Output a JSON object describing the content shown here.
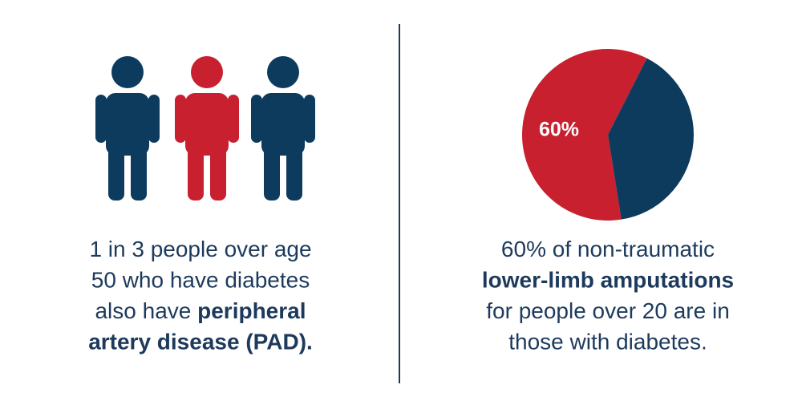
{
  "left_panel": {
    "caption": [
      [
        {
          "text": "1 in 3 people over age",
          "bold": false
        }
      ],
      [
        {
          "text": "50 who have diabetes",
          "bold": false
        }
      ],
      [
        {
          "text": "also have ",
          "bold": false
        },
        {
          "text": "peripheral",
          "bold": true
        }
      ],
      [
        {
          "text": "artery disease (PAD).",
          "bold": true
        }
      ]
    ]
  },
  "chart_data": {
    "type": "pie",
    "values": [
      60,
      40
    ],
    "value_labels": [
      "60%",
      null
    ],
    "colors": [
      "#c8202f",
      "#0d3b5e"
    ],
    "caption": [
      [
        {
          "text": "60% of non-traumatic",
          "bold": false
        }
      ],
      [
        {
          "text": "lower-limb amputations",
          "bold": true
        }
      ],
      [
        {
          "text": "for people over 20 are in",
          "bold": false
        }
      ],
      [
        {
          "text": "those with diabetes.",
          "bold": false
        }
      ]
    ]
  }
}
